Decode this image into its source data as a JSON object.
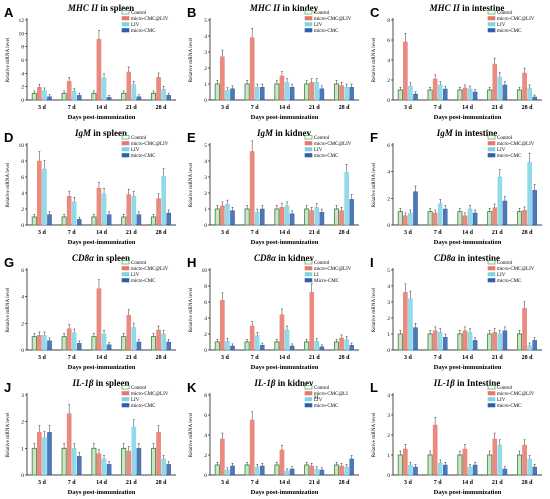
{
  "figure": {
    "colors": {
      "control": "#3d8b3d",
      "micro_cmc_liv": "#e8776a",
      "liv": "#7fd3e6",
      "micro_cmc": "#2f5fa8"
    }
  },
  "chart_data": [
    {
      "letter": "A",
      "gene": "MHC II",
      "tissue": "in spleen",
      "type": "bar",
      "ylabel": "Relative mRNA level",
      "xlabel": "Days post-immunization",
      "categories": [
        "3 d",
        "7 d",
        "14 d",
        "21 d",
        "28 d"
      ],
      "ylim": [
        0,
        12
      ],
      "yticks": [
        0,
        2,
        4,
        6,
        8,
        10,
        12
      ],
      "legend": [
        "Control",
        "micro-CMC@LIV",
        "LIV",
        "micro-CMC"
      ],
      "series": [
        {
          "name": "Control",
          "values": [
            1,
            1,
            1,
            1,
            1
          ]
        },
        {
          "name": "micro-CMC@LIV",
          "values": [
            1.9,
            2.8,
            9.1,
            4.2,
            3.4
          ]
        },
        {
          "name": "LIV",
          "values": [
            1.4,
            1.3,
            3.3,
            2.3,
            1.6
          ]
        },
        {
          "name": "micro-CMC",
          "values": [
            0.5,
            0.7,
            0.4,
            0.5,
            0.7
          ]
        }
      ]
    },
    {
      "letter": "B",
      "gene": "MHC II",
      "tissue": "in kindey",
      "type": "bar",
      "ylabel": "Relative mRNA level",
      "xlabel": "Days post-immunization",
      "categories": [
        "3 d",
        "7 d",
        "14 d",
        "21 d",
        "28 d"
      ],
      "ylim": [
        0,
        5
      ],
      "yticks": [
        0,
        1,
        2,
        3,
        4,
        5
      ],
      "legend": [
        "Control",
        "micro-CMC@LIV",
        "LIV",
        "micro-CMC"
      ],
      "series": [
        {
          "name": "Control",
          "values": [
            1,
            1,
            1,
            1,
            1
          ]
        },
        {
          "name": "micro-CMC@LIV",
          "values": [
            2.7,
            3.9,
            1.5,
            1.1,
            0.9
          ]
        },
        {
          "name": "LIV",
          "values": [
            0.6,
            0.8,
            1.1,
            1.1,
            0.8
          ]
        },
        {
          "name": "micro-CMC",
          "values": [
            0.7,
            0.8,
            0.8,
            0.7,
            0.8
          ]
        }
      ]
    },
    {
      "letter": "C",
      "gene": "MHC II",
      "tissue": "in intestine",
      "type": "bar",
      "ylabel": "Relative mRNA level",
      "xlabel": "Days post-immunization",
      "categories": [
        "3 d",
        "7 d",
        "14 d",
        "21 d",
        "28 d"
      ],
      "ylim": [
        0,
        8
      ],
      "yticks": [
        0,
        2,
        4,
        6,
        8
      ],
      "legend": [
        "Control",
        "micro-CMC@LIV",
        "LIV",
        "micro-CMC"
      ],
      "series": [
        {
          "name": "Control",
          "values": [
            1,
            1,
            1,
            1,
            1
          ]
        },
        {
          "name": "micro-CMC@LIV",
          "values": [
            5.8,
            2.1,
            1.2,
            3.6,
            2.7
          ]
        },
        {
          "name": "LIV",
          "values": [
            1.4,
            1.5,
            1.1,
            2.3,
            1.2
          ]
        },
        {
          "name": "micro-CMC",
          "values": [
            0.6,
            1.1,
            0.8,
            1.5,
            0.3
          ]
        }
      ]
    },
    {
      "letter": "D",
      "gene": "IgM",
      "tissue": "in spleen",
      "type": "bar",
      "ylabel": "Relative mRNA level",
      "xlabel": "Days post-immunization",
      "categories": [
        "3 d",
        "7 d",
        "14 d",
        "21 d",
        "28 d"
      ],
      "ylim": [
        0,
        10
      ],
      "yticks": [
        0,
        2,
        4,
        6,
        8,
        10
      ],
      "legend": [
        "Control",
        "micro-CMC@LIV",
        "LIV",
        "micro-CMC"
      ],
      "series": [
        {
          "name": "Control",
          "values": [
            1,
            1,
            1,
            1,
            1
          ]
        },
        {
          "name": "micro-CMC@LIV",
          "values": [
            8,
            3.6,
            4.6,
            3.8,
            3.3
          ]
        },
        {
          "name": "LIV",
          "values": [
            7,
            2.9,
            3.9,
            3.6,
            6.1
          ]
        },
        {
          "name": "micro-CMC",
          "values": [
            1.3,
            0.7,
            1.3,
            1.3,
            1.5
          ]
        }
      ]
    },
    {
      "letter": "E",
      "gene": "IgM",
      "tissue": "in kidney",
      "type": "bar",
      "ylabel": "Relative mRNA level",
      "xlabel": "Days post-immunization",
      "categories": [
        "3 d",
        "7 d",
        "14 d",
        "21 d",
        "28 d"
      ],
      "ylim": [
        0,
        5
      ],
      "yticks": [
        0,
        1,
        2,
        3,
        4,
        5
      ],
      "legend": [
        "Control",
        "micro-CMC@LIV",
        "LIV",
        "micro-CMC"
      ],
      "series": [
        {
          "name": "Control",
          "values": [
            1,
            1,
            1,
            1,
            1
          ]
        },
        {
          "name": "micro-CMC@LIV",
          "values": [
            1.2,
            4.6,
            1.1,
            0.9,
            0.9
          ]
        },
        {
          "name": "LIV",
          "values": [
            1.3,
            0.8,
            1.2,
            1.1,
            3.3
          ]
        },
        {
          "name": "micro-CMC",
          "values": [
            0.9,
            1,
            0.7,
            0.8,
            1.6
          ]
        }
      ]
    },
    {
      "letter": "F",
      "gene": "IgM",
      "tissue": "in intestine",
      "type": "bar",
      "ylabel": "Relative mRNA level",
      "xlabel": "Days post-immunization",
      "categories": [
        "3 d",
        "7 d",
        "14 d",
        "21 d",
        "28 d"
      ],
      "ylim": [
        0,
        6
      ],
      "yticks": [
        0,
        2,
        4,
        6
      ],
      "legend": [
        "Control",
        "micro-CMC@LIV",
        "LIV",
        "micro-CMC"
      ],
      "series": [
        {
          "name": "Control",
          "values": [
            1,
            1,
            1,
            1,
            1
          ]
        },
        {
          "name": "micro-CMC@LIV",
          "values": [
            0.7,
            0.9,
            0.7,
            1.3,
            1.1
          ]
        },
        {
          "name": "LIV",
          "values": [
            0.9,
            1.6,
            1.2,
            3.6,
            4.7
          ]
        },
        {
          "name": "micro-CMC",
          "values": [
            2.5,
            1.2,
            0.9,
            1.8,
            2.6
          ]
        }
      ]
    },
    {
      "letter": "G",
      "gene": "CD8α",
      "tissue": "in spleen",
      "type": "bar",
      "ylabel": "Relative mRNA level",
      "xlabel": "Days post-immunization",
      "categories": [
        "3 d",
        "7 d",
        "14 d",
        "21 d",
        "28 d"
      ],
      "ylim": [
        0,
        6
      ],
      "yticks": [
        0,
        2,
        4,
        6
      ],
      "legend": [
        "Control",
        "micro-CMC@LIV",
        "LIV",
        "micro-CMC"
      ],
      "series": [
        {
          "name": "Control",
          "values": [
            1,
            1,
            1,
            1,
            1
          ]
        },
        {
          "name": "micro-CMC@LIV",
          "values": [
            1.1,
            1.6,
            4.6,
            2.6,
            1.5
          ]
        },
        {
          "name": "LIV",
          "values": [
            1.1,
            1.3,
            1.2,
            1.7,
            1.2
          ]
        },
        {
          "name": "micro-CMC",
          "values": [
            0.7,
            0.5,
            0.4,
            0.6,
            0.6
          ]
        }
      ]
    },
    {
      "letter": "H",
      "gene": "CD8α",
      "tissue": "in kidney",
      "type": "bar",
      "ylabel": "Relative mRNA level",
      "xlabel": "Days post-immunization",
      "categories": [
        "3 d",
        "7 d",
        "14 d",
        "21 d",
        "28 d"
      ],
      "ylim": [
        0,
        10
      ],
      "yticks": [
        0,
        2,
        4,
        6,
        8,
        10
      ],
      "legend": [
        "Control",
        "micro-CMC@LIV",
        "LI",
        "Micro-CMC"
      ],
      "series": [
        {
          "name": "Control",
          "values": [
            1,
            1,
            1,
            1,
            1
          ]
        },
        {
          "name": "micro-CMC@LIV",
          "values": [
            6.2,
            3,
            4.4,
            7.2,
            1.5
          ]
        },
        {
          "name": "LI",
          "values": [
            1.1,
            1.8,
            2.5,
            1.1,
            1.3
          ]
        },
        {
          "name": "Micro-CMC",
          "values": [
            0.5,
            0.6,
            0.5,
            0.4,
            0.6
          ]
        }
      ]
    },
    {
      "letter": "I",
      "gene": "CD8a",
      "tissue": "in intestine",
      "type": "bar",
      "ylabel": "Relative mRNA level",
      "xlabel": "Days post-immunization",
      "categories": [
        "3 d",
        "7 d",
        "14 d",
        "21 d",
        "28 d"
      ],
      "ylim": [
        0,
        5
      ],
      "yticks": [
        0,
        1,
        2,
        3,
        4,
        5
      ],
      "legend": [
        "Control",
        "micro-CMC@LIV",
        "LIV",
        "micro-CMC"
      ],
      "series": [
        {
          "name": "Control",
          "values": [
            1,
            1,
            1,
            1,
            1
          ]
        },
        {
          "name": "micro-CMC@LIV",
          "values": [
            3.6,
            1.2,
            1.2,
            1.1,
            2.6
          ]
        },
        {
          "name": "LIV",
          "values": [
            3.2,
            1.1,
            1.1,
            1,
            0.3
          ]
        },
        {
          "name": "micro-CMC",
          "values": [
            1.4,
            0.8,
            0.6,
            1.2,
            0.6
          ]
        }
      ]
    },
    {
      "letter": "J",
      "gene": "IL-1β",
      "tissue": "in spleen",
      "type": "bar",
      "ylabel": "Relative mRNA level",
      "xlabel": "Days post-immunization",
      "categories": [
        "3 d",
        "7 d",
        "14 d",
        "21 d",
        "28 d"
      ],
      "ylim": [
        0,
        3
      ],
      "yticks": [
        0,
        1,
        2,
        3
      ],
      "legend": [
        "Control",
        "micro-CMC@LIV",
        "LIV",
        "micro-CMC"
      ],
      "series": [
        {
          "name": "Control",
          "values": [
            1,
            1,
            1,
            1,
            1
          ]
        },
        {
          "name": "micro-CMC@LIV",
          "values": [
            1.6,
            2.3,
            0.8,
            0.9,
            1.6
          ]
        },
        {
          "name": "LIV",
          "values": [
            1.4,
            1,
            0.6,
            1.8,
            0.6
          ]
        },
        {
          "name": "micro-CMC",
          "values": [
            1.6,
            0.7,
            0.4,
            1,
            0.4
          ]
        }
      ]
    },
    {
      "letter": "K",
      "gene": "IL-1β",
      "tissue": "in kidney",
      "type": "bar",
      "ylabel": "Relative mRNA level",
      "xlabel": "Days post-immunization",
      "categories": [
        "3 d",
        "7 d",
        "14 d",
        "21 d",
        "28 d"
      ],
      "ylim": [
        0,
        8
      ],
      "yticks": [
        0,
        2,
        4,
        6,
        8
      ],
      "legend": [
        "Control",
        "micro-CMC@LI\nM",
        "LIV",
        "micro-CMC"
      ],
      "series": [
        {
          "name": "Control",
          "values": [
            1,
            1,
            1,
            1,
            1
          ]
        },
        {
          "name": "micro-CMC@LIV",
          "values": [
            3.6,
            5.5,
            2.5,
            0.9,
            0.9
          ]
        },
        {
          "name": "LIV",
          "values": [
            0.5,
            0.8,
            0.4,
            0.6,
            0.8
          ]
        },
        {
          "name": "micro-CMC",
          "values": [
            0.9,
            0.9,
            0.6,
            0.5,
            1.6
          ]
        }
      ]
    },
    {
      "letter": "L",
      "gene": "IL-1β",
      "tissue": "in Intestine",
      "type": "bar",
      "ylabel": "Relative mRNA level",
      "xlabel": "Days post-immunization",
      "categories": [
        "3 d",
        "7 d",
        "14 d",
        "21 d",
        "28 d"
      ],
      "ylim": [
        0,
        4
      ],
      "yticks": [
        0,
        1,
        2,
        3,
        4
      ],
      "legend": [
        "Control",
        "micro-CMC@LIV",
        "LIV",
        "micro-CMC"
      ],
      "series": [
        {
          "name": "Control",
          "values": [
            1,
            1,
            1,
            1,
            1
          ]
        },
        {
          "name": "micro-CMC@LIV",
          "values": [
            1.3,
            2.5,
            1.3,
            1.8,
            1.5
          ]
        },
        {
          "name": "LIV",
          "values": [
            0.5,
            0.6,
            0.4,
            1.5,
            0.8
          ]
        },
        {
          "name": "micro-CMC",
          "values": [
            0.4,
            0.5,
            0.5,
            0.3,
            0.4
          ]
        }
      ]
    }
  ]
}
